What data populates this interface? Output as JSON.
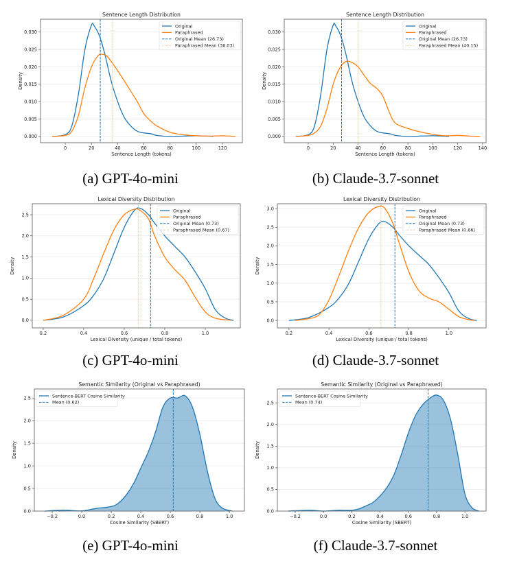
{
  "colors": {
    "original": "#1f77b4",
    "paraphrased": "#ff7f0e",
    "grid": "#e6e6e6"
  },
  "captions": [
    "(a) GPT-4o-mini",
    "(b) Claude-3.7-sonnet",
    "(c) GPT-4o-mini",
    "(d) Claude-3.7-sonnet",
    "(e) GPT-4o-mini",
    "(f) Claude-3.7-sonnet"
  ],
  "chart_data": [
    {
      "type": "line",
      "title": "Sentence Length Distribution",
      "xlabel": "Sentence Length (tokens)",
      "ylabel": "Density",
      "xlim": [
        -18.9,
        135.2
      ],
      "ylim": [
        -0.0018,
        0.0337
      ],
      "xticks": [
        0,
        20,
        40,
        60,
        80,
        100,
        120
      ],
      "xtick_labels": [
        "0",
        "20",
        "40",
        "60",
        "80",
        "100",
        "120"
      ],
      "yticks": [
        0,
        0.005,
        0.01,
        0.015,
        0.02,
        0.025,
        0.03
      ],
      "ytick_labels": [
        "0.000",
        "0.005",
        "0.010",
        "0.015",
        "0.020",
        "0.025",
        "0.030"
      ],
      "grid": "y",
      "legend": "top-right",
      "series": [
        {
          "name": "Original",
          "color": "#1f77b4",
          "x": [
            -10,
            0,
            5,
            10,
            15,
            20,
            22,
            26,
            30,
            35,
            40,
            45,
            50,
            55,
            60,
            65,
            70,
            80,
            100,
            113
          ],
          "y": [
            0,
            0.0005,
            0.003,
            0.012,
            0.025,
            0.032,
            0.0318,
            0.029,
            0.024,
            0.016,
            0.01,
            0.0055,
            0.003,
            0.0015,
            0.001,
            0.0008,
            0.0003,
            0,
            0.0002,
            0
          ]
        },
        {
          "name": "Paraphrased",
          "color": "#ff7f0e",
          "x": [
            -10,
            0,
            5,
            10,
            15,
            20,
            25,
            28,
            32,
            38,
            45,
            50,
            55,
            60,
            65,
            70,
            80,
            90,
            100,
            110,
            120,
            130
          ],
          "y": [
            0,
            0.0003,
            0.0015,
            0.006,
            0.014,
            0.02,
            0.0232,
            0.0236,
            0.023,
            0.02,
            0.016,
            0.013,
            0.01,
            0.0065,
            0.0045,
            0.003,
            0.0012,
            0.0005,
            0.0002,
            0.0001,
            0.0002,
            0
          ]
        }
      ],
      "vlines": [
        {
          "name": "Original Mean (26.73)",
          "x": 26.73,
          "color": "#1f77b4",
          "style": "dashed"
        },
        {
          "name": "Paraphrased Mean (36.03)",
          "x": 36.03,
          "color": "#ffbf80",
          "style": "dotted"
        }
      ]
    },
    {
      "type": "line",
      "title": "Sentence Length Distribution",
      "xlabel": "Sentence Length (tokens)",
      "ylabel": "Density",
      "xlim": [
        -19.3,
        142.8
      ],
      "ylim": [
        -0.0018,
        0.0337
      ],
      "xticks": [
        0,
        20,
        40,
        60,
        80,
        100,
        120,
        140
      ],
      "xtick_labels": [
        "0",
        "20",
        "40",
        "60",
        "80",
        "100",
        "120",
        "140"
      ],
      "yticks": [
        0,
        0.005,
        0.01,
        0.015,
        0.02,
        0.025,
        0.03
      ],
      "ytick_labels": [
        "0.000",
        "0.005",
        "0.010",
        "0.015",
        "0.020",
        "0.025",
        "0.030"
      ],
      "grid": "y",
      "legend": "top-right",
      "series": [
        {
          "name": "Original",
          "color": "#1f77b4",
          "x": [
            -10,
            0,
            5,
            10,
            15,
            20,
            22,
            26,
            30,
            35,
            40,
            45,
            50,
            55,
            60,
            65,
            70,
            80,
            100,
            113
          ],
          "y": [
            0,
            0.0005,
            0.003,
            0.012,
            0.025,
            0.032,
            0.0318,
            0.029,
            0.024,
            0.016,
            0.01,
            0.0055,
            0.003,
            0.0015,
            0.001,
            0.0008,
            0.0003,
            0,
            0.0002,
            0
          ]
        },
        {
          "name": "Paraphrased",
          "color": "#ff7f0e",
          "x": [
            -10,
            0,
            5,
            10,
            15,
            20,
            25,
            30,
            35,
            40,
            45,
            50,
            55,
            60,
            65,
            70,
            80,
            90,
            100,
            110,
            120,
            130,
            138
          ],
          "y": [
            0,
            0.0003,
            0.001,
            0.003,
            0.008,
            0.015,
            0.0195,
            0.0215,
            0.0213,
            0.02,
            0.0175,
            0.0152,
            0.0138,
            0.0115,
            0.007,
            0.0038,
            0.0023,
            0.0013,
            0.0006,
            0.0002,
            0.0003,
            0.0001,
            0
          ]
        }
      ],
      "vlines": [
        {
          "name": "Original Mean (26.73)",
          "x": 26.73,
          "color": "#1f77b4",
          "style": "dashed"
        },
        {
          "name": "Paraphrased Mean (40.15)",
          "x": 40.15,
          "color": "#ffbf80",
          "style": "dotted"
        }
      ]
    },
    {
      "type": "line",
      "title": "Lexical Diversity Distribution",
      "xlabel": "Lexical Diversity (unique / total tokens)",
      "ylabel": "Density",
      "xlim": [
        0.146,
        1.173
      ],
      "ylim": [
        -0.18,
        2.76
      ],
      "xticks": [
        0.2,
        0.4,
        0.6,
        0.8,
        1.0
      ],
      "xtick_labels": [
        "0.2",
        "0.4",
        "0.6",
        "0.8",
        "1.0"
      ],
      "yticks": [
        0,
        0.5,
        1,
        1.5,
        2,
        2.5
      ],
      "ytick_labels": [
        "0.0",
        "0.5",
        "1.0",
        "1.5",
        "2.0",
        "2.5"
      ],
      "grid": "y",
      "legend": "top-right",
      "series": [
        {
          "name": "Original",
          "color": "#1f77b4",
          "x": [
            0.2,
            0.3,
            0.4,
            0.45,
            0.5,
            0.55,
            0.6,
            0.65,
            0.68,
            0.72,
            0.75,
            0.8,
            0.85,
            0.9,
            0.95,
            1.0,
            1.05,
            1.1,
            1.14
          ],
          "y": [
            0,
            0.08,
            0.35,
            0.6,
            1.0,
            1.6,
            2.2,
            2.6,
            2.65,
            2.5,
            2.3,
            2.0,
            1.75,
            1.5,
            1.15,
            0.75,
            0.25,
            0.05,
            0
          ]
        },
        {
          "name": "Paraphrased",
          "color": "#ff7f0e",
          "x": [
            0.2,
            0.3,
            0.4,
            0.45,
            0.5,
            0.55,
            0.6,
            0.65,
            0.68,
            0.72,
            0.75,
            0.8,
            0.85,
            0.9,
            0.95,
            1.0,
            1.05,
            1.13
          ],
          "y": [
            0,
            0.12,
            0.5,
            1.0,
            1.6,
            2.15,
            2.5,
            2.63,
            2.6,
            2.4,
            2.0,
            1.5,
            1.2,
            0.95,
            0.55,
            0.2,
            0.05,
            0
          ]
        }
      ],
      "vlines": [
        {
          "name": "Original Mean (0.73)",
          "x": 0.73,
          "color": "#1f77b4",
          "style": "dashed"
        },
        {
          "name": "Paraphrased Mean (0.67)",
          "x": 0.67,
          "color": "#ffbf80",
          "style": "dotted"
        }
      ]
    },
    {
      "type": "line",
      "title": "Lexical Diversity Distribution",
      "xlabel": "Lexical Diversity (unique / total tokens)",
      "ylabel": "Density",
      "xlim": [
        0.142,
        1.186
      ],
      "ylim": [
        -0.2,
        3.13
      ],
      "xticks": [
        0.2,
        0.4,
        0.6,
        0.8,
        1.0
      ],
      "xtick_labels": [
        "0.2",
        "0.4",
        "0.6",
        "0.8",
        "1.0"
      ],
      "yticks": [
        0,
        0.5,
        1,
        1.5,
        2,
        2.5,
        3
      ],
      "ytick_labels": [
        "0.0",
        "0.5",
        "1.0",
        "1.5",
        "2.0",
        "2.5",
        "3.0"
      ],
      "grid": "y",
      "legend": "top-right",
      "series": [
        {
          "name": "Original",
          "color": "#1f77b4",
          "x": [
            0.2,
            0.3,
            0.4,
            0.45,
            0.5,
            0.55,
            0.6,
            0.65,
            0.68,
            0.72,
            0.75,
            0.8,
            0.85,
            0.9,
            0.95,
            1.0,
            1.05,
            1.1,
            1.14
          ],
          "y": [
            0,
            0.08,
            0.35,
            0.6,
            1.0,
            1.6,
            2.2,
            2.6,
            2.65,
            2.5,
            2.3,
            2.0,
            1.75,
            1.5,
            1.15,
            0.75,
            0.25,
            0.05,
            0
          ]
        },
        {
          "name": "Paraphrased",
          "color": "#ff7f0e",
          "x": [
            0.23,
            0.3,
            0.35,
            0.4,
            0.45,
            0.5,
            0.55,
            0.6,
            0.65,
            0.68,
            0.72,
            0.75,
            0.8,
            0.85,
            0.9,
            0.95,
            1.0,
            1.05,
            1.1,
            1.13
          ],
          "y": [
            0,
            0.05,
            0.15,
            0.55,
            1.2,
            1.9,
            2.5,
            2.9,
            3.06,
            3.0,
            2.6,
            2.1,
            1.3,
            0.8,
            0.6,
            0.5,
            0.3,
            0.1,
            0.02,
            0
          ]
        }
      ],
      "vlines": [
        {
          "name": "Original Mean (0.73)",
          "x": 0.73,
          "color": "#1f77b4",
          "style": "dashed"
        },
        {
          "name": "Paraphrased Mean (0.66)",
          "x": 0.66,
          "color": "#ffbf80",
          "style": "dotted"
        }
      ]
    },
    {
      "type": "area",
      "title": "Semantic Similarity (Original vs Paraphrased)",
      "xlabel": "Cosine Similarity (SBERT)",
      "ylabel": "Density",
      "xlim": [
        -0.321,
        1.102
      ],
      "ylim": [
        0,
        2.7
      ],
      "xticks": [
        -0.2,
        0,
        0.2,
        0.4,
        0.6,
        0.8,
        1.0
      ],
      "xtick_labels": [
        "−0.2",
        "0.0",
        "0.2",
        "0.4",
        "0.6",
        "0.8",
        "1.0"
      ],
      "yticks": [
        0,
        0.5,
        1,
        1.5,
        2,
        2.5
      ],
      "ytick_labels": [
        "0.0",
        "0.5",
        "1.0",
        "1.5",
        "2.0",
        "2.5"
      ],
      "grid": "y",
      "legend": "top-left",
      "series": [
        {
          "name": "Sentence-BERT Cosine Similarity",
          "color": "#1f77b4",
          "fill": true,
          "x": [
            -0.25,
            -0.15,
            -0.1,
            0,
            0.1,
            0.2,
            0.25,
            0.3,
            0.35,
            0.4,
            0.45,
            0.5,
            0.55,
            0.6,
            0.65,
            0.7,
            0.75,
            0.8,
            0.85,
            0.9,
            0.95,
            1.02
          ],
          "y": [
            0,
            0.02,
            0.02,
            0.005,
            0.06,
            0.1,
            0.18,
            0.35,
            0.6,
            0.95,
            1.3,
            1.75,
            2.3,
            2.5,
            2.5,
            2.55,
            2.3,
            1.7,
            0.9,
            0.3,
            0.07,
            0
          ]
        }
      ],
      "vlines": [
        {
          "name": "Mean (0.62)",
          "x": 0.62,
          "color": "#1f77b4",
          "style": "dashed"
        }
      ]
    },
    {
      "type": "area",
      "title": "Semantic Similarity (Original vs Paraphrased)",
      "xlabel": "Cosine Similarity (SBERT)",
      "ylabel": "Density",
      "xlim": [
        -0.326,
        1.15
      ],
      "ylim": [
        0,
        2.82
      ],
      "xticks": [
        -0.2,
        0,
        0.2,
        0.4,
        0.6,
        0.8,
        1.0
      ],
      "xtick_labels": [
        "−0.2",
        "0.0",
        "0.2",
        "0.4",
        "0.6",
        "0.8",
        "1.0"
      ],
      "yticks": [
        0,
        0.5,
        1,
        1.5,
        2,
        2.5
      ],
      "ytick_labels": [
        "0.0",
        "0.5",
        "1.0",
        "1.5",
        "2.0",
        "2.5"
      ],
      "grid": "y",
      "legend": "top-left",
      "series": [
        {
          "name": "Sentence-BERT Cosine Similarity",
          "color": "#1f77b4",
          "fill": true,
          "x": [
            -0.25,
            -0.1,
            0,
            0.1,
            0.2,
            0.25,
            0.3,
            0.35,
            0.4,
            0.45,
            0.5,
            0.55,
            0.6,
            0.65,
            0.7,
            0.75,
            0.8,
            0.85,
            0.9,
            0.95,
            1.0,
            1.05,
            1.1
          ],
          "y": [
            0,
            0.02,
            0,
            0.02,
            0.02,
            0.05,
            0.12,
            0.2,
            0.35,
            0.55,
            0.85,
            1.3,
            1.8,
            2.2,
            2.45,
            2.6,
            2.68,
            2.55,
            2.1,
            1.3,
            0.4,
            0.08,
            0
          ]
        }
      ],
      "vlines": [
        {
          "name": "Mean (0.74)",
          "x": 0.74,
          "color": "#1f77b4",
          "style": "dashed"
        }
      ]
    }
  ]
}
